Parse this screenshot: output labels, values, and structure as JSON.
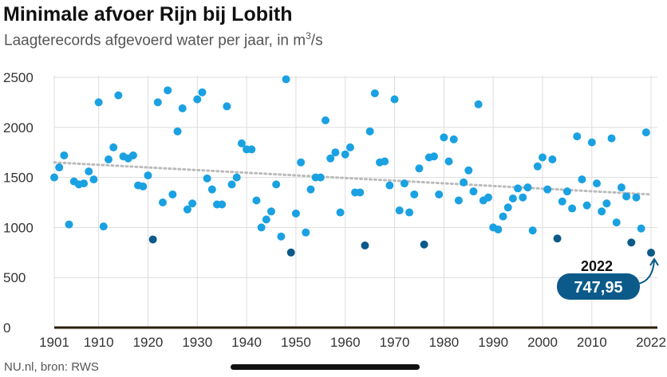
{
  "header": {
    "title": "Minimale afvoer Rijn bij Lobith",
    "subtitle_main": "Laagterecords afgevoerd water per jaar, in m",
    "subtitle_sup": "3",
    "subtitle_end": "/s"
  },
  "footer": {
    "source": "NU.nl, bron: RWS"
  },
  "colors": {
    "point": "#1aa1e2",
    "point_low": "#0b5a8a",
    "trend": "#bbbbbb",
    "callout": "#0b5a8a",
    "grid": "#dddddd",
    "baseline": "#2a1f0a"
  },
  "chart_data": {
    "type": "scatter",
    "xlim": [
      1901,
      2022
    ],
    "ylim": [
      0,
      2500
    ],
    "xticks": [
      "1901",
      "1910",
      "1920",
      "1930",
      "1940",
      "1950",
      "1960",
      "1970",
      "1980",
      "1990",
      "2000",
      "2010",
      "2022"
    ],
    "xtick_values": [
      1901,
      1910,
      1920,
      1930,
      1940,
      1950,
      1960,
      1970,
      1980,
      1990,
      2000,
      2010,
      2022
    ],
    "yticks": [
      "0",
      "500",
      "1000",
      "1500",
      "2000",
      "2500"
    ],
    "ytick_values": [
      0,
      500,
      1000,
      1500,
      2000,
      2500
    ],
    "grid": true,
    "trendline": {
      "x": [
        1901,
        2022
      ],
      "y": [
        1650,
        1330
      ]
    },
    "annotation": {
      "year": "2022",
      "value": "747,95",
      "x": 2022,
      "y": 747.95
    },
    "points": [
      [
        1901,
        1500,
        "n"
      ],
      [
        1902,
        1600,
        "n"
      ],
      [
        1903,
        1720,
        "n"
      ],
      [
        1904,
        1030,
        "n"
      ],
      [
        1905,
        1460,
        "n"
      ],
      [
        1906,
        1430,
        "n"
      ],
      [
        1907,
        1440,
        "n"
      ],
      [
        1908,
        1560,
        "n"
      ],
      [
        1909,
        1480,
        "n"
      ],
      [
        1910,
        2250,
        "n"
      ],
      [
        1911,
        1010,
        "n"
      ],
      [
        1912,
        1680,
        "n"
      ],
      [
        1913,
        1800,
        "n"
      ],
      [
        1914,
        2320,
        "n"
      ],
      [
        1915,
        1710,
        "n"
      ],
      [
        1916,
        1690,
        "n"
      ],
      [
        1917,
        1720,
        "n"
      ],
      [
        1918,
        1420,
        "n"
      ],
      [
        1919,
        1410,
        "n"
      ],
      [
        1920,
        1520,
        "n"
      ],
      [
        1921,
        880,
        "l"
      ],
      [
        1922,
        2250,
        "n"
      ],
      [
        1923,
        1250,
        "n"
      ],
      [
        1924,
        2370,
        "n"
      ],
      [
        1925,
        1330,
        "n"
      ],
      [
        1926,
        1960,
        "n"
      ],
      [
        1927,
        2190,
        "n"
      ],
      [
        1928,
        1180,
        "n"
      ],
      [
        1929,
        1240,
        "n"
      ],
      [
        1930,
        2280,
        "n"
      ],
      [
        1931,
        2350,
        "n"
      ],
      [
        1932,
        1490,
        "n"
      ],
      [
        1933,
        1380,
        "n"
      ],
      [
        1934,
        1230,
        "n"
      ],
      [
        1935,
        1230,
        "n"
      ],
      [
        1936,
        2210,
        "n"
      ],
      [
        1937,
        1430,
        "n"
      ],
      [
        1938,
        1500,
        "n"
      ],
      [
        1939,
        1840,
        "n"
      ],
      [
        1940,
        1780,
        "n"
      ],
      [
        1941,
        1780,
        "n"
      ],
      [
        1942,
        1270,
        "n"
      ],
      [
        1943,
        1000,
        "n"
      ],
      [
        1944,
        1080,
        "n"
      ],
      [
        1945,
        1160,
        "n"
      ],
      [
        1946,
        1430,
        "n"
      ],
      [
        1947,
        910,
        "n"
      ],
      [
        1948,
        2480,
        "n"
      ],
      [
        1949,
        750,
        "l"
      ],
      [
        1950,
        1140,
        "n"
      ],
      [
        1951,
        1650,
        "n"
      ],
      [
        1952,
        950,
        "n"
      ],
      [
        1953,
        1380,
        "n"
      ],
      [
        1954,
        1500,
        "n"
      ],
      [
        1955,
        1500,
        "n"
      ],
      [
        1956,
        2070,
        "n"
      ],
      [
        1957,
        1690,
        "n"
      ],
      [
        1958,
        1750,
        "n"
      ],
      [
        1959,
        1150,
        "n"
      ],
      [
        1960,
        1730,
        "n"
      ],
      [
        1961,
        1800,
        "n"
      ],
      [
        1962,
        1350,
        "n"
      ],
      [
        1963,
        1350,
        "n"
      ],
      [
        1964,
        820,
        "l"
      ],
      [
        1965,
        1960,
        "n"
      ],
      [
        1966,
        2340,
        "n"
      ],
      [
        1967,
        1650,
        "n"
      ],
      [
        1968,
        1660,
        "n"
      ],
      [
        1969,
        1420,
        "n"
      ],
      [
        1970,
        2280,
        "n"
      ],
      [
        1971,
        1170,
        "n"
      ],
      [
        1972,
        1440,
        "n"
      ],
      [
        1973,
        1150,
        "n"
      ],
      [
        1974,
        1330,
        "n"
      ],
      [
        1975,
        1590,
        "n"
      ],
      [
        1976,
        830,
        "l"
      ],
      [
        1977,
        1700,
        "n"
      ],
      [
        1978,
        1710,
        "n"
      ],
      [
        1979,
        1330,
        "n"
      ],
      [
        1980,
        1900,
        "n"
      ],
      [
        1981,
        1660,
        "n"
      ],
      [
        1982,
        1880,
        "n"
      ],
      [
        1983,
        1270,
        "n"
      ],
      [
        1984,
        1450,
        "n"
      ],
      [
        1985,
        1570,
        "n"
      ],
      [
        1986,
        1360,
        "n"
      ],
      [
        1987,
        2230,
        "n"
      ],
      [
        1988,
        1270,
        "n"
      ],
      [
        1989,
        1300,
        "n"
      ],
      [
        1990,
        1000,
        "n"
      ],
      [
        1991,
        980,
        "n"
      ],
      [
        1992,
        1110,
        "n"
      ],
      [
        1993,
        1200,
        "n"
      ],
      [
        1994,
        1290,
        "n"
      ],
      [
        1995,
        1390,
        "n"
      ],
      [
        1996,
        1300,
        "n"
      ],
      [
        1997,
        1400,
        "n"
      ],
      [
        1998,
        970,
        "n"
      ],
      [
        1999,
        1610,
        "n"
      ],
      [
        2000,
        1700,
        "n"
      ],
      [
        2001,
        1380,
        "n"
      ],
      [
        2002,
        1680,
        "n"
      ],
      [
        2003,
        890,
        "l"
      ],
      [
        2004,
        1260,
        "n"
      ],
      [
        2005,
        1360,
        "n"
      ],
      [
        2006,
        1190,
        "n"
      ],
      [
        2007,
        1910,
        "n"
      ],
      [
        2008,
        1480,
        "n"
      ],
      [
        2009,
        1220,
        "n"
      ],
      [
        2010,
        1850,
        "n"
      ],
      [
        2011,
        1440,
        "n"
      ],
      [
        2012,
        1160,
        "n"
      ],
      [
        2013,
        1240,
        "n"
      ],
      [
        2014,
        1890,
        "n"
      ],
      [
        2015,
        1050,
        "n"
      ],
      [
        2016,
        1400,
        "n"
      ],
      [
        2017,
        1310,
        "n"
      ],
      [
        2018,
        850,
        "l"
      ],
      [
        2019,
        1300,
        "n"
      ],
      [
        2020,
        990,
        "n"
      ],
      [
        2021,
        1950,
        "n"
      ],
      [
        2022,
        748,
        "l"
      ]
    ]
  }
}
